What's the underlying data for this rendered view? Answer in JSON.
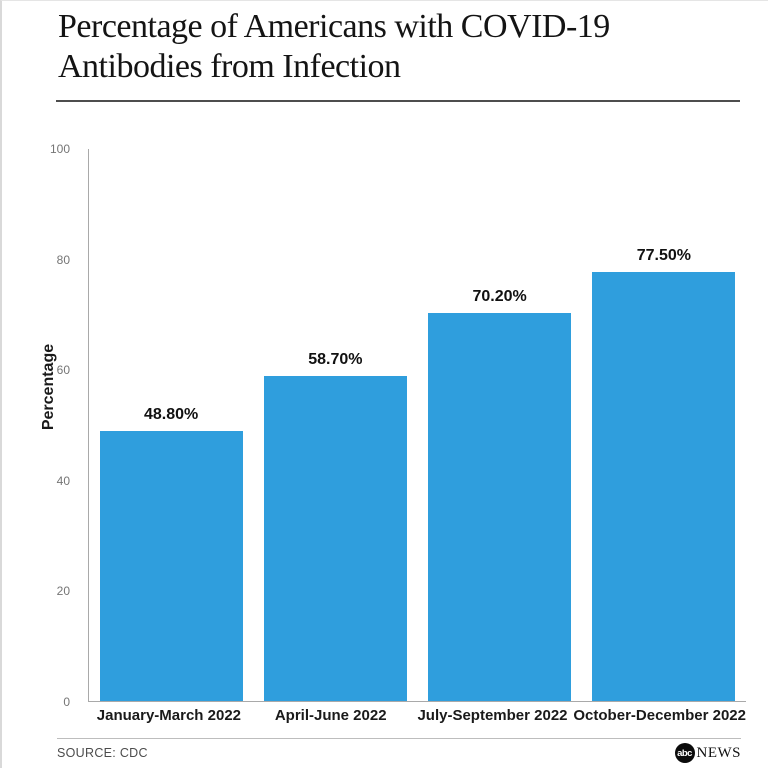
{
  "header": {
    "title": "Percentage of Americans with COVID-19 Antibodies from Infection"
  },
  "chart_data": {
    "type": "bar",
    "title": "Percentage of Americans with COVID-19 Antibodies from Infection",
    "categories": [
      "January-March 2022",
      "April-June 2022",
      "July-September 2022",
      "October-December 2022"
    ],
    "values": [
      48.8,
      58.7,
      70.2,
      77.5
    ],
    "value_labels": [
      "48.80%",
      "58.70%",
      "70.20%",
      "77.50%"
    ],
    "xlabel": "",
    "ylabel": "Percentage",
    "ylim": [
      0,
      100
    ],
    "yticks": [
      0,
      20,
      40,
      60,
      80,
      100
    ],
    "grid": false,
    "legend": "none",
    "bar_color": "#2F9EDD"
  },
  "footer": {
    "source": "SOURCE: CDC",
    "logo_abc": "abc",
    "logo_news": "NEWS"
  }
}
